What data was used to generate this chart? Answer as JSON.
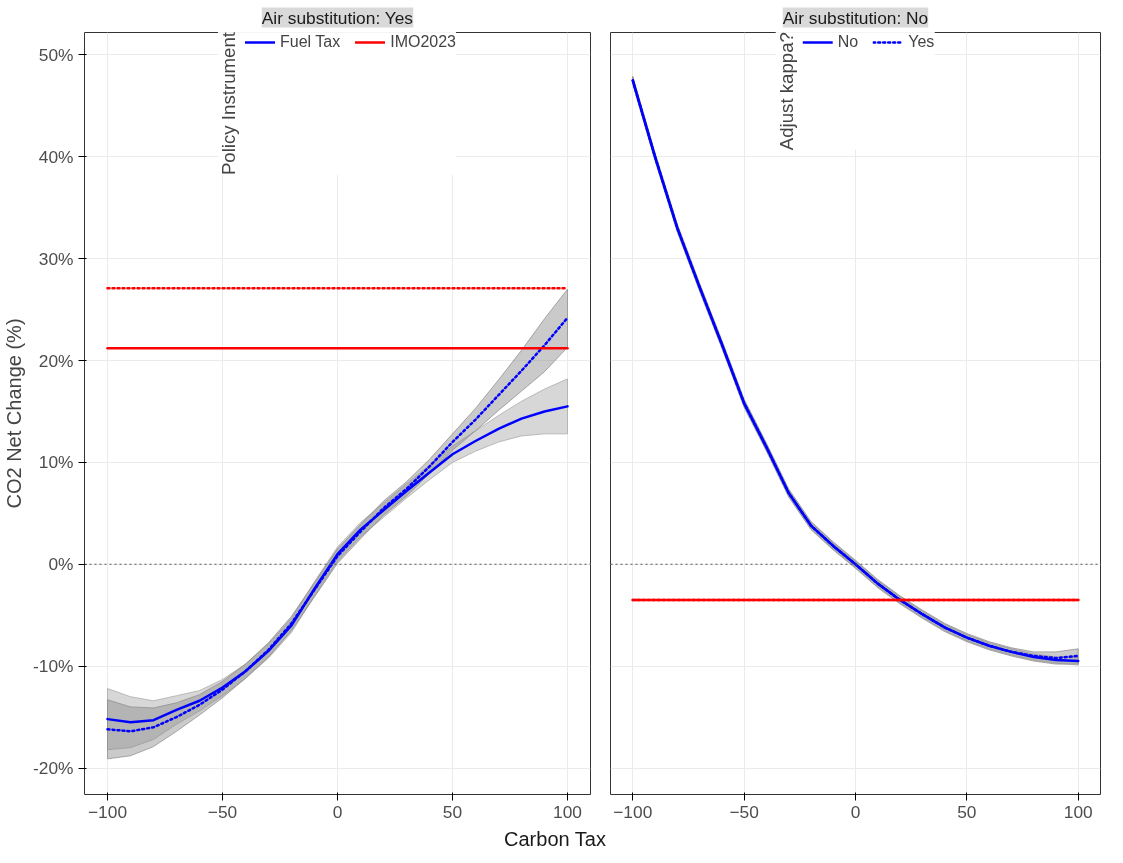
{
  "chart_data": [
    {
      "type": "line",
      "title": "Air substitution: Yes",
      "xlabel": "Carbon Tax",
      "ylabel": "CO2 Net Change (%)",
      "legend_title": "Policy Instrument",
      "legend": "top",
      "grid": true,
      "x": [
        -100,
        -90,
        -80,
        -70,
        -60,
        -50,
        -40,
        -30,
        -20,
        -10,
        0,
        10,
        20,
        30,
        40,
        50,
        60,
        70,
        80,
        90,
        100
      ],
      "xlim": [
        -110,
        110
      ],
      "xticks": [
        -100,
        -50,
        0,
        50,
        100
      ],
      "ylim": [
        -22.6,
        52.2
      ],
      "yticks": [
        {
          "value": -20,
          "label": "-20%"
        },
        {
          "value": -10,
          "label": "-10%"
        },
        {
          "value": 0,
          "label": "0%"
        },
        {
          "value": 10,
          "label": "10%"
        },
        {
          "value": 20,
          "label": "20%"
        },
        {
          "value": 30,
          "label": "30%"
        },
        {
          "value": 40,
          "label": "40%"
        },
        {
          "value": 50,
          "label": "50%"
        }
      ],
      "ref_lines": [
        {
          "axis": "y",
          "value": 0,
          "color": "#555555",
          "line_style": "dotted"
        }
      ],
      "series": [
        {
          "name": "Fuel Tax",
          "color": "#0000ff",
          "line_style": "solid",
          "values": [
            -15.2,
            -15.5,
            -15.3,
            -14.3,
            -13.4,
            -12.1,
            -10.5,
            -8.5,
            -6.0,
            -2.4,
            1.0,
            3.4,
            5.3,
            7.2,
            9.0,
            10.8,
            12.1,
            13.3,
            14.3,
            15.0,
            15.5
          ],
          "lower": [
            -18.2,
            -18.0,
            -17.2,
            -15.7,
            -14.4,
            -12.9,
            -11.2,
            -9.2,
            -6.7,
            -3.1,
            0.3,
            2.7,
            4.6,
            6.5,
            8.3,
            10.0,
            11.1,
            12.0,
            12.6,
            12.8,
            12.8
          ],
          "upper": [
            -12.2,
            -13.0,
            -13.4,
            -12.9,
            -12.4,
            -11.3,
            -9.8,
            -7.8,
            -5.3,
            -1.7,
            1.7,
            4.1,
            6.0,
            7.9,
            9.7,
            11.6,
            13.1,
            14.6,
            16.0,
            17.2,
            18.2
          ]
        },
        {
          "color": "#0000ff",
          "line_style": "dotted",
          "values": [
            -16.2,
            -16.4,
            -16.0,
            -15.0,
            -13.8,
            -12.3,
            -10.5,
            -8.4,
            -5.8,
            -2.5,
            0.8,
            3.2,
            5.5,
            7.4,
            9.6,
            12.0,
            14.2,
            16.6,
            19.0,
            21.5,
            24.2
          ],
          "lower": [
            -19.1,
            -18.8,
            -17.9,
            -16.4,
            -14.8,
            -13.1,
            -11.2,
            -9.1,
            -6.5,
            -3.2,
            0.1,
            2.5,
            4.8,
            6.7,
            8.9,
            11.2,
            13.1,
            15.1,
            17.0,
            18.9,
            21.3
          ],
          "upper": [
            -13.3,
            -14.0,
            -14.1,
            -13.6,
            -12.8,
            -11.5,
            -9.8,
            -7.7,
            -5.1,
            -1.8,
            1.5,
            3.9,
            6.2,
            8.1,
            10.3,
            12.8,
            15.3,
            18.1,
            21.0,
            24.1,
            27.0
          ]
        },
        {
          "name": "IMO2023",
          "color": "#ff0000",
          "line_style": "solid",
          "values": [
            21.2,
            21.2,
            21.2,
            21.2,
            21.2,
            21.2,
            21.2,
            21.2,
            21.2,
            21.2,
            21.2,
            21.2,
            21.2,
            21.2,
            21.2,
            21.2,
            21.2,
            21.2,
            21.2,
            21.2,
            21.2
          ]
        },
        {
          "color": "#ff0000",
          "line_style": "dotted",
          "values": [
            27.1,
            27.1,
            27.1,
            27.1,
            27.1,
            27.1,
            27.1,
            27.1,
            27.1,
            27.1,
            27.1,
            27.1,
            27.1,
            27.1,
            27.1,
            27.1,
            27.1,
            27.1,
            27.1,
            27.1,
            27.1
          ]
        }
      ]
    },
    {
      "type": "line",
      "title": "Air substitution: No",
      "legend_title": "Adjust kappa?",
      "legend": "top",
      "grid": true,
      "tick_labels": "x",
      "x": [
        -100,
        -90,
        -80,
        -70,
        -60,
        -50,
        -40,
        -30,
        -20,
        -10,
        0,
        10,
        20,
        30,
        40,
        50,
        60,
        70,
        80,
        90,
        100
      ],
      "xlim": [
        -110,
        110
      ],
      "xticks": [
        -100,
        -50,
        0,
        50,
        100
      ],
      "ylim": [
        -22.6,
        52.2
      ],
      "yticks": [
        -20,
        -10,
        0,
        10,
        20,
        30,
        40,
        50
      ],
      "ref_lines": [
        {
          "axis": "y",
          "value": 0,
          "color": "#555555",
          "line_style": "dotted"
        }
      ],
      "series": [
        {
          "name": "No",
          "color": "#0000ff",
          "line_style": "solid",
          "values": [
            47.5,
            40.0,
            33.0,
            27.2,
            21.6,
            15.8,
            11.5,
            7.0,
            3.8,
            1.8,
            0,
            -1.9,
            -3.5,
            -4.9,
            -6.2,
            -7.2,
            -8.0,
            -8.6,
            -9.1,
            -9.4,
            -9.5
          ],
          "lower": [
            47.2,
            39.7,
            32.7,
            26.9,
            21.3,
            15.5,
            11.2,
            6.7,
            3.5,
            1.5,
            -0.3,
            -2.2,
            -3.8,
            -5.2,
            -6.5,
            -7.5,
            -8.3,
            -8.9,
            -9.4,
            -9.7,
            -9.9
          ],
          "upper": [
            47.8,
            40.3,
            33.3,
            27.5,
            21.9,
            16.1,
            11.8,
            7.3,
            4.1,
            2.1,
            0.3,
            -1.6,
            -3.2,
            -4.6,
            -5.9,
            -6.9,
            -7.7,
            -8.3,
            -8.8,
            -9.1,
            -9.1
          ]
        },
        {
          "name": "Yes",
          "color": "#0000ff",
          "line_style": "dotted",
          "values": [
            47.5,
            40.0,
            33.0,
            27.2,
            21.6,
            15.8,
            11.5,
            7.0,
            3.8,
            1.8,
            0,
            -1.9,
            -3.5,
            -4.9,
            -6.2,
            -7.2,
            -8.0,
            -8.6,
            -9.0,
            -9.2,
            -9.0
          ],
          "lower": [
            47.1,
            39.6,
            32.6,
            26.8,
            21.2,
            15.4,
            11.1,
            6.6,
            3.4,
            1.4,
            -0.4,
            -2.3,
            -3.9,
            -5.3,
            -6.6,
            -7.6,
            -8.4,
            -9.0,
            -9.5,
            -9.8,
            -9.8
          ],
          "upper": [
            47.9,
            40.4,
            33.4,
            27.6,
            22.0,
            16.2,
            11.9,
            7.4,
            4.2,
            2.2,
            0.4,
            -1.5,
            -3.1,
            -4.5,
            -5.8,
            -6.8,
            -7.6,
            -8.2,
            -8.6,
            -8.6,
            -8.3
          ]
        },
        {
          "color": "#ff0000",
          "line_style": "solid",
          "values": [
            -3.5,
            -3.5,
            -3.5,
            -3.5,
            -3.5,
            -3.5,
            -3.5,
            -3.5,
            -3.5,
            -3.5,
            -3.5,
            -3.5,
            -3.5,
            -3.5,
            -3.5,
            -3.5,
            -3.5,
            -3.5,
            -3.5,
            -3.5,
            -3.5
          ]
        },
        {
          "color": "#ff0000",
          "line_style": "dotted",
          "values": [
            -3.5,
            -3.5,
            -3.5,
            -3.5,
            -3.5,
            -3.5,
            -3.5,
            -3.5,
            -3.5,
            -3.5,
            -3.5,
            -3.5,
            -3.5,
            -3.5,
            -3.5,
            -3.5,
            -3.5,
            -3.5,
            -3.5,
            -3.5,
            -3.5
          ]
        }
      ]
    }
  ]
}
